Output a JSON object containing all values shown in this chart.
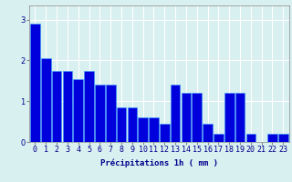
{
  "categories": [
    0,
    1,
    2,
    3,
    4,
    5,
    6,
    7,
    8,
    9,
    10,
    11,
    12,
    13,
    14,
    15,
    16,
    17,
    18,
    19,
    20,
    21,
    22,
    23
  ],
  "values": [
    2.9,
    2.05,
    1.75,
    1.75,
    1.55,
    1.75,
    1.4,
    1.4,
    0.85,
    0.85,
    0.6,
    0.6,
    0.45,
    1.4,
    1.2,
    1.2,
    0.45,
    0.2,
    1.2,
    1.2,
    0.2,
    0.0,
    0.2,
    0.2
  ],
  "bar_color": "#0000dd",
  "bar_edge_color": "#3399ff",
  "background_color": "#d8f0f0",
  "grid_color": "#ffffff",
  "xlabel": "Précipitations 1h ( mm )",
  "ylim": [
    0,
    3.35
  ],
  "yticks": [
    0,
    1,
    2,
    3
  ],
  "title_color": "#00008b",
  "xlabel_fontsize": 6.5,
  "tick_fontsize": 6.0
}
